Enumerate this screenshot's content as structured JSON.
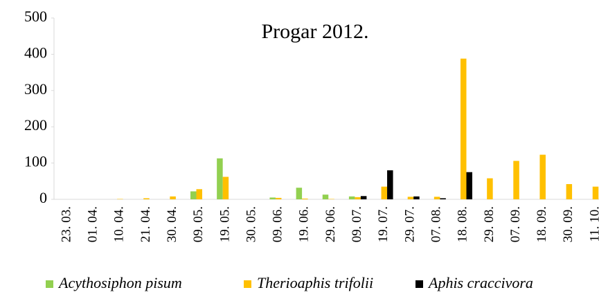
{
  "chart_data": {
    "type": "bar",
    "title": "Progar 2012.",
    "categories": [
      "23. 03.",
      "01. 04.",
      "10. 04.",
      "21. 04.",
      "30. 04.",
      "09. 05.",
      "19. 05.",
      "30. 05.",
      "09. 06.",
      "19. 06.",
      "29. 06.",
      "09. 07.",
      "19. 07.",
      "29. 07.",
      "07. 08.",
      "18. 08.",
      "29. 08.",
      "07. 09.",
      "18. 09.",
      "30. 09.",
      "11. 10."
    ],
    "series": [
      {
        "name": "Acythosiphon pisum",
        "color": "#92d050",
        "values": [
          0,
          0,
          0,
          0,
          0,
          22,
          113,
          0,
          5,
          32,
          13,
          8,
          0,
          0,
          0,
          0,
          0,
          0,
          0,
          0,
          0
        ]
      },
      {
        "name": "Therioaphis trifolii",
        "color": "#ffc000",
        "values": [
          0,
          0,
          1,
          3,
          8,
          28,
          62,
          0,
          4,
          2,
          1,
          6,
          35,
          7,
          7,
          388,
          58,
          106,
          123,
          42,
          35
        ]
      },
      {
        "name": "Aphis craccivora",
        "color": "#000000",
        "values": [
          0,
          0,
          0,
          0,
          0,
          0,
          0,
          0,
          0,
          0,
          0,
          9,
          80,
          8,
          3,
          75,
          0,
          0,
          0,
          0,
          0
        ]
      }
    ],
    "ylim": [
      0,
      500
    ],
    "yticks": [
      0,
      100,
      200,
      300,
      400,
      500
    ],
    "legend": "bottom"
  }
}
